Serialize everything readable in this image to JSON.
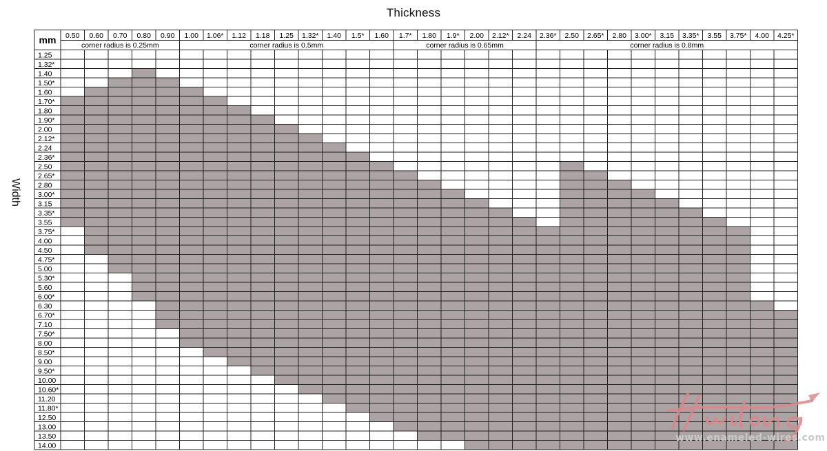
{
  "chart_data": {
    "type": "table",
    "title": "Thickness",
    "ylabel": "Width",
    "corner_label": "mm",
    "thickness": [
      "0.50",
      "0.60",
      "0.70",
      "0.80",
      "0.90",
      "1.00",
      "1.06*",
      "1.12",
      "1.18",
      "1.25",
      "1.32*",
      "1.40",
      "1.5*",
      "1.60",
      "1.7*",
      "1.80",
      "1.9*",
      "2.00",
      "2.12*",
      "2.24",
      "2.36*",
      "2.50",
      "2.65*",
      "2.80",
      "3.00*",
      "3.15",
      "3.35*",
      "3.55",
      "3.75*",
      "4.00",
      "4.25*"
    ],
    "corner_radius_groups": [
      {
        "label": "corner radius is 0.25mm",
        "start": 0,
        "end": 4
      },
      {
        "label": "corner radius is 0.5mm",
        "start": 5,
        "end": 13
      },
      {
        "label": "corner radius is 0.65mm",
        "start": 14,
        "end": 19
      },
      {
        "label": "corner radius is 0.8mm",
        "start": 20,
        "end": 30
      }
    ],
    "width": [
      "1.25",
      "1.32*",
      "1.40",
      "1.50*",
      "1.60",
      "1.70*",
      "1.80",
      "1.90*",
      "2.00",
      "2.12*",
      "2.24",
      "2.36*",
      "2.50",
      "2.65*",
      "2.80",
      "3.00*",
      "3.15",
      "3.35*",
      "3.55",
      "3.75*",
      "4.00",
      "4.50",
      "4.75*",
      "5.00",
      "5.30*",
      "5.60",
      "6.00*",
      "6.30",
      "6.70*",
      "7.10",
      "7.50*",
      "8.00",
      "8.50*",
      "9.00",
      "9.50*",
      "10.00",
      "10.60*",
      "11.20",
      "11.80*",
      "12.50",
      "13.00",
      "13.50",
      "14.00"
    ],
    "available_width_range": [
      {
        "thickness": "0.50",
        "min_width": "1.70*",
        "max_width": "3.55"
      },
      {
        "thickness": "0.60",
        "min_width": "1.60",
        "max_width": "4.50"
      },
      {
        "thickness": "0.70",
        "min_width": "1.50*",
        "max_width": "5.00"
      },
      {
        "thickness": "0.80",
        "min_width": "1.40",
        "max_width": "6.00*"
      },
      {
        "thickness": "0.90",
        "min_width": "1.50*",
        "max_width": "7.10"
      },
      {
        "thickness": "1.00",
        "min_width": "1.60",
        "max_width": "8.00"
      },
      {
        "thickness": "1.06*",
        "min_width": "1.70*",
        "max_width": "8.50*"
      },
      {
        "thickness": "1.12",
        "min_width": "1.80",
        "max_width": "9.00"
      },
      {
        "thickness": "1.18",
        "min_width": "1.90*",
        "max_width": "9.50*"
      },
      {
        "thickness": "1.25",
        "min_width": "2.00",
        "max_width": "10.00"
      },
      {
        "thickness": "1.32*",
        "min_width": "2.12*",
        "max_width": "10.60*"
      },
      {
        "thickness": "1.40",
        "min_width": "2.24",
        "max_width": "11.20"
      },
      {
        "thickness": "1.5*",
        "min_width": "2.36*",
        "max_width": "11.80*"
      },
      {
        "thickness": "1.60",
        "min_width": "2.50",
        "max_width": "12.50"
      },
      {
        "thickness": "1.7*",
        "min_width": "2.65*",
        "max_width": "13.00"
      },
      {
        "thickness": "1.80",
        "min_width": "2.80",
        "max_width": "13.50"
      },
      {
        "thickness": "1.9*",
        "min_width": "3.00*",
        "max_width": "13.50"
      },
      {
        "thickness": "2.00",
        "min_width": "3.15",
        "max_width": "14.00"
      },
      {
        "thickness": "2.12*",
        "min_width": "3.35*",
        "max_width": "14.00"
      },
      {
        "thickness": "2.24",
        "min_width": "3.55",
        "max_width": "14.00"
      },
      {
        "thickness": "2.36*",
        "min_width": "3.75*",
        "max_width": "14.00"
      },
      {
        "thickness": "2.50",
        "min_width": "2.50",
        "max_width": "14.00"
      },
      {
        "thickness": "2.65*",
        "min_width": "2.65*",
        "max_width": "14.00"
      },
      {
        "thickness": "2.80",
        "min_width": "2.80",
        "max_width": "14.00"
      },
      {
        "thickness": "3.00*",
        "min_width": "3.00*",
        "max_width": "14.00"
      },
      {
        "thickness": "3.15",
        "min_width": "3.15",
        "max_width": "14.00"
      },
      {
        "thickness": "3.35*",
        "min_width": "3.35*",
        "max_width": "14.00"
      },
      {
        "thickness": "3.55",
        "min_width": "3.55",
        "max_width": "14.00"
      },
      {
        "thickness": "3.75*",
        "min_width": "3.75*",
        "max_width": "14.00"
      },
      {
        "thickness": "4.00",
        "min_width": "6.30",
        "max_width": "14.00"
      },
      {
        "thickness": "4.25*",
        "min_width": "6.70*",
        "max_width": "14.00"
      }
    ],
    "available_color": "#aba3a4",
    "grid_line_color": "#222222",
    "grid": true
  },
  "watermark": {
    "logo_text": "Huilong",
    "url": "www.enameled-wires.com",
    "logo_color": "#d9898c"
  }
}
